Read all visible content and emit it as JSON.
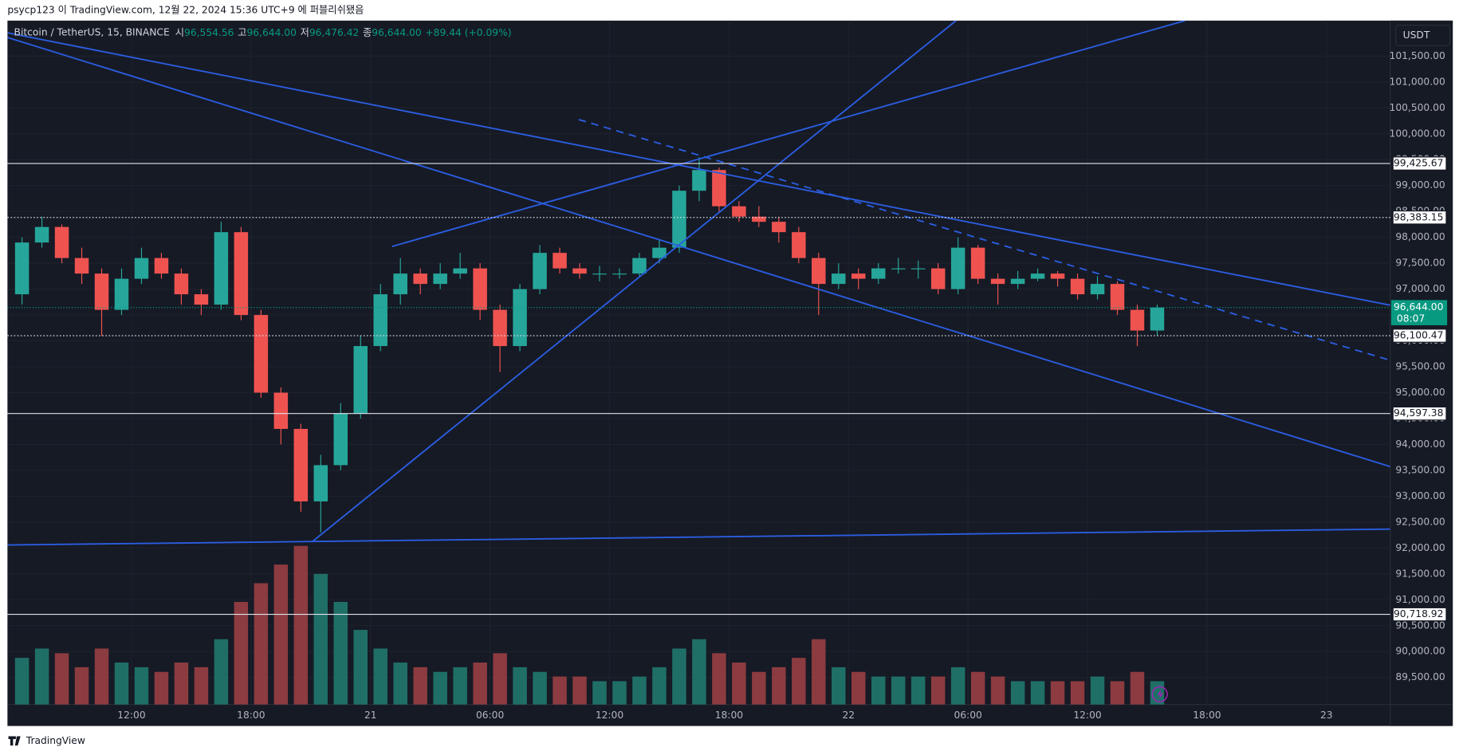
{
  "header": {
    "text": "psycp123 이 TradingView.com, 12월 22, 2024 15:36 UTC+9 에 퍼블리쉬됐음"
  },
  "footer": {
    "brand": "TradingView"
  },
  "chart_data": {
    "type": "candlestick",
    "title": "Bitcoin / TetherUS, 15, BINANCE",
    "ohlc_legend": [
      {
        "name": "시",
        "value": 96554.56,
        "label": "96,554.56"
      },
      {
        "name": "고",
        "value": 96644.0,
        "label": "96,644.00"
      },
      {
        "name": "저",
        "value": 96476.42,
        "label": "96,476.42"
      },
      {
        "name": "종",
        "value": 96644.0,
        "label": "96,644.00"
      }
    ],
    "change": {
      "value": 89.44,
      "label": "+89.44 (+0.09%)"
    },
    "currency": "USDT",
    "x": [
      6.5,
      7.5,
      8.5,
      9.5,
      10.5,
      11.5,
      12.5,
      13.5,
      14.5,
      15.5,
      16.5,
      17.5,
      18.5,
      19.5,
      20.5,
      21.5,
      22.5,
      23.5,
      24.5,
      25.5,
      26.5,
      27.5,
      28.5,
      29.5,
      30.5,
      31.5,
      32.5,
      33.5,
      34.5,
      35.5,
      36.5,
      37.5,
      38.5,
      39.5,
      40.5,
      41.5,
      42.5,
      43.5,
      44.5,
      45.5,
      46.5,
      47.5,
      48.5,
      49.5,
      50.5,
      51.5,
      52.5,
      53.5,
      54.5,
      55.5,
      56.5,
      57.5,
      58.5,
      59.5,
      60.5,
      61.5,
      62.5,
      63.5
    ],
    "open": [
      96900,
      97900,
      98200,
      97600,
      97300,
      96600,
      97200,
      97600,
      97300,
      96900,
      96700,
      98100,
      96500,
      95000,
      94300,
      92900,
      93600,
      94600,
      95900,
      96900,
      97300,
      97100,
      97300,
      97400,
      96600,
      95900,
      97000,
      97700,
      97400,
      97300,
      97300,
      97300,
      97600,
      97800,
      98900,
      99300,
      98600,
      98400,
      98300,
      98100,
      97600,
      97100,
      97300,
      97200,
      97400,
      97400,
      97400,
      97000,
      97800,
      97200,
      97100,
      97200,
      97300,
      97200,
      96900,
      97100,
      96600,
      96200
    ],
    "high": [
      98000,
      98400,
      98250,
      97800,
      97400,
      97400,
      97800,
      97700,
      97400,
      97000,
      98300,
      98200,
      96600,
      95100,
      94400,
      93800,
      94800,
      96100,
      97100,
      97600,
      97400,
      97500,
      97700,
      97500,
      96700,
      97100,
      97850,
      97800,
      97500,
      97450,
      97400,
      97700,
      97950,
      99000,
      99550,
      99350,
      98700,
      98600,
      98400,
      98200,
      97700,
      97500,
      97400,
      97500,
      97600,
      97550,
      97500,
      98000,
      97850,
      97300,
      97350,
      97400,
      97350,
      97300,
      97250,
      97150,
      96700,
      96700
    ],
    "low": [
      96700,
      97800,
      97500,
      97100,
      96100,
      96500,
      97100,
      97200,
      96700,
      96500,
      96600,
      96400,
      94900,
      94000,
      92700,
      92300,
      93500,
      94500,
      95800,
      96700,
      96900,
      97000,
      97200,
      96400,
      95400,
      95800,
      96900,
      97300,
      97200,
      97150,
      97200,
      97250,
      97500,
      97700,
      98700,
      98500,
      98300,
      98200,
      97900,
      97500,
      96500,
      97000,
      97000,
      97100,
      97300,
      97200,
      96900,
      96900,
      97100,
      96700,
      97000,
      97150,
      97050,
      96800,
      96800,
      96500,
      95900,
      96100
    ],
    "close": [
      97900,
      98200,
      97600,
      97300,
      96600,
      97200,
      97600,
      97300,
      96900,
      96700,
      98100,
      96500,
      95000,
      94300,
      92900,
      93600,
      94600,
      95900,
      96900,
      97300,
      97100,
      97300,
      97400,
      96600,
      95900,
      97000,
      97700,
      97400,
      97300,
      97300,
      97300,
      97600,
      97800,
      98900,
      99300,
      98600,
      98400,
      98300,
      98100,
      97600,
      97100,
      97300,
      97200,
      97400,
      97400,
      97400,
      97000,
      97800,
      97200,
      97100,
      97200,
      97300,
      97200,
      96900,
      97100,
      96600,
      96200,
      96644
    ],
    "volume": [
      50,
      60,
      55,
      40,
      60,
      45,
      40,
      35,
      45,
      40,
      70,
      110,
      130,
      150,
      170,
      140,
      110,
      80,
      60,
      45,
      40,
      35,
      40,
      45,
      55,
      40,
      35,
      30,
      30,
      25,
      25,
      30,
      40,
      60,
      70,
      55,
      45,
      35,
      40,
      50,
      70,
      40,
      35,
      30,
      30,
      30,
      30,
      40,
      35,
      30,
      25,
      25,
      25,
      25,
      30,
      25,
      35,
      25
    ],
    "volume_lim": [
      0,
      200
    ],
    "colors": {
      "up": "#26a69a",
      "down": "#ef5350",
      "volume_up": "#1f6f67",
      "volume_down": "#8c3b40",
      "trend": "#2b5de0"
    },
    "grid": true,
    "xlim": [
      5.77,
      75.2
    ],
    "xticks": [
      {
        "value": 12,
        "label": "12:00"
      },
      {
        "value": 18,
        "label": "18:00"
      },
      {
        "value": 24,
        "label": "21"
      },
      {
        "value": 30,
        "label": "06:00"
      },
      {
        "value": 36,
        "label": "12:00"
      },
      {
        "value": 42,
        "label": "18:00"
      },
      {
        "value": 48,
        "label": "22"
      },
      {
        "value": 54,
        "label": "06:00"
      },
      {
        "value": 60,
        "label": "12:00"
      },
      {
        "value": 66,
        "label": "18:00"
      },
      {
        "value": 72,
        "label": "23"
      }
    ],
    "ylim": [
      88977,
      102185
    ],
    "yticks": [
      {
        "value": 89500,
        "label": "89,500.00"
      },
      {
        "value": 90000,
        "label": "90,000.00"
      },
      {
        "value": 90500,
        "label": "90,500.00"
      },
      {
        "value": 91000,
        "label": "91,000.00"
      },
      {
        "value": 91500,
        "label": "91,500.00"
      },
      {
        "value": 92000,
        "label": "92,000.00"
      },
      {
        "value": 92500,
        "label": "92,500.00"
      },
      {
        "value": 93000,
        "label": "93,000.00"
      },
      {
        "value": 93500,
        "label": "93,500.00"
      },
      {
        "value": 94000,
        "label": "94,000.00"
      },
      {
        "value": 94500,
        "label": "94,500.00"
      },
      {
        "value": 95000,
        "label": "95,000.00"
      },
      {
        "value": 95500,
        "label": "95,500.00"
      },
      {
        "value": 96000,
        "label": "96,000.00"
      },
      {
        "value": 96500,
        "label": "96,500.00"
      },
      {
        "value": 97000,
        "label": "97,000.00"
      },
      {
        "value": 97500,
        "label": "97,500.00"
      },
      {
        "value": 98000,
        "label": "98,000.00"
      },
      {
        "value": 98500,
        "label": "98,500.00"
      },
      {
        "value": 99000,
        "label": "99,000.00"
      },
      {
        "value": 99500,
        "label": "99,500.00"
      },
      {
        "value": 100000,
        "label": "100,000.00"
      },
      {
        "value": 100500,
        "label": "100,500.00"
      },
      {
        "value": 101000,
        "label": "101,000.00"
      },
      {
        "value": 101500,
        "label": "101,500.00"
      }
    ],
    "price_lines": [
      {
        "value": 99425.67,
        "label": "99,425.67",
        "style": "solid"
      },
      {
        "value": 98383.15,
        "label": "98,383.15",
        "style": "dotted"
      },
      {
        "value": 96100.47,
        "label": "96,100.47",
        "style": "dotted"
      },
      {
        "value": 94597.38,
        "label": "94,597.38",
        "style": "solid"
      },
      {
        "value": 90718.92,
        "label": "90,718.92",
        "style": "solid"
      }
    ],
    "last_price": {
      "value": 96644.0,
      "label": "96,644.00",
      "countdown": "08:07",
      "color": "#089981"
    },
    "trend_lines": [
      {
        "x": [
          5.77,
          75.2
        ],
        "y": [
          101950,
          96689
        ],
        "style": "solid"
      },
      {
        "x": [
          5.77,
          75.2
        ],
        "y": [
          101860,
          93572
        ],
        "style": "solid"
      },
      {
        "x": [
          21.1,
          53.4
        ],
        "y": [
          92130,
          102185
        ],
        "style": "solid"
      },
      {
        "x": [
          25.08,
          64.9
        ],
        "y": [
          97824,
          102185
        ],
        "style": "solid"
      },
      {
        "x": [
          5.77,
          75.2
        ],
        "y": [
          92058,
          92365
        ],
        "style": "solid"
      },
      {
        "x": [
          34.45,
          75.2
        ],
        "y": [
          100275,
          95626
        ],
        "style": "dashed"
      }
    ]
  }
}
